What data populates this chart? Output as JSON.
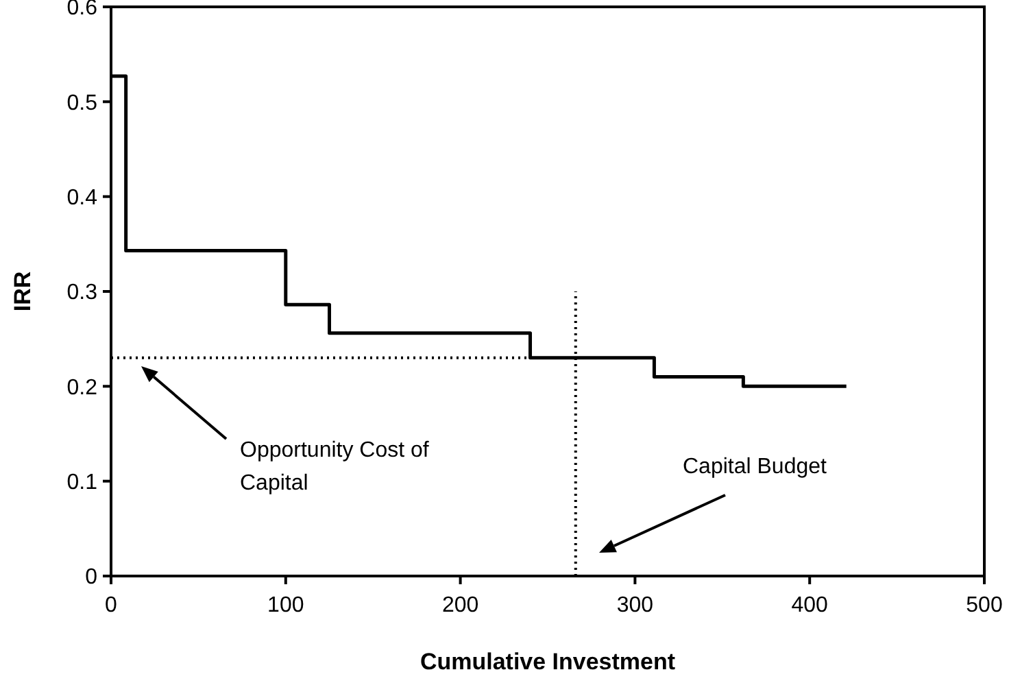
{
  "chart_data": {
    "type": "step",
    "xlabel": "Cumulative Investment",
    "ylabel": "IRR",
    "xlim": [
      0,
      500
    ],
    "xticks": [
      0,
      100,
      200,
      300,
      400,
      500
    ],
    "ylim": [
      0,
      0.6
    ],
    "yticks": [
      0,
      0.1,
      0.2,
      0.3,
      0.4,
      0.5,
      0.6
    ],
    "grid": false,
    "marker": "none",
    "series": [
      {
        "color": "#000000",
        "line_style": "solid",
        "x": [
          0,
          8.5,
          100,
          125,
          240,
          311,
          362,
          421
        ],
        "values": [
          0.527,
          0.343,
          0.286,
          0.256,
          0.23,
          0.21,
          0.2,
          0.2
        ]
      },
      {
        "type": "line",
        "color": "#000000",
        "line_style": "dotted",
        "x": [
          0,
          240
        ],
        "values": [
          0.23,
          0.23
        ]
      },
      {
        "type": "line",
        "color": "#000000",
        "line_style": "dotted",
        "x": [
          266,
          266
        ],
        "values": [
          0,
          0.3
        ]
      }
    ],
    "annotations": [
      "Opportunity Cost of Capital",
      "Capital Budget"
    ]
  }
}
